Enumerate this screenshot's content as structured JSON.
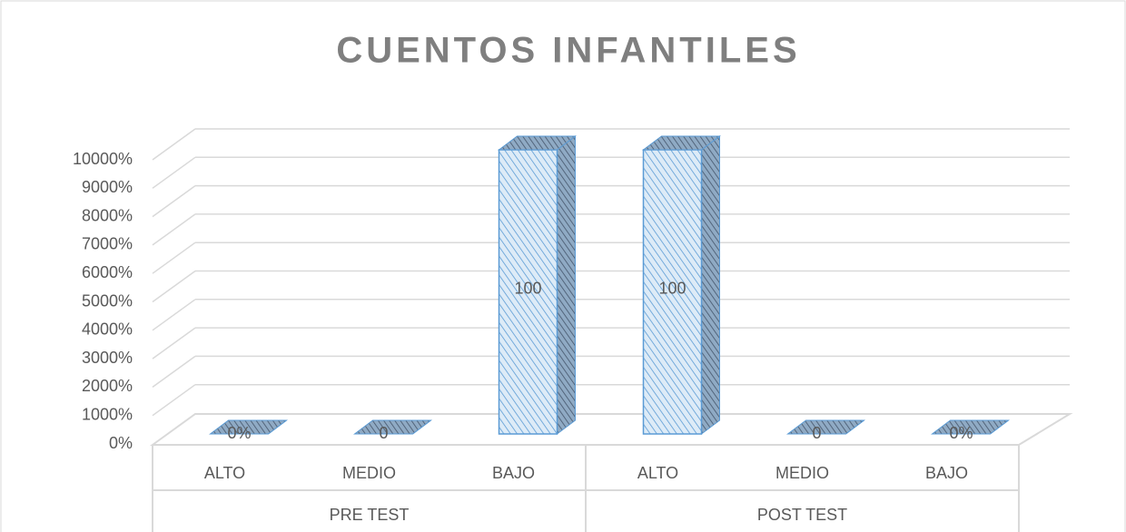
{
  "chart_data": {
    "type": "bar3d",
    "title": "CUENTOS INFANTILES",
    "categories": [
      "ALTO",
      "MEDIO",
      "BAJO",
      "ALTO",
      "MEDIO",
      "BAJO"
    ],
    "groups": [
      "PRE TEST",
      "POST TEST"
    ],
    "values": [
      0,
      0,
      100,
      100,
      0,
      0
    ],
    "value_labels": [
      "0%",
      "0",
      "100",
      "100",
      "0",
      "0%"
    ],
    "color": "#5b9bd5",
    "ylim": [
      0,
      100
    ],
    "yticks": [
      {
        "value": 0,
        "label": "0%"
      },
      {
        "value": 10,
        "label": "1000%"
      },
      {
        "value": 20,
        "label": "2000%"
      },
      {
        "value": 30,
        "label": "3000%"
      },
      {
        "value": 40,
        "label": "4000%"
      },
      {
        "value": 50,
        "label": "5000%"
      },
      {
        "value": 60,
        "label": "6000%"
      },
      {
        "value": 70,
        "label": "7000%"
      },
      {
        "value": 80,
        "label": "8000%"
      },
      {
        "value": 90,
        "label": "9000%"
      },
      {
        "value": 100,
        "label": "10000%"
      }
    ],
    "grid": true
  }
}
